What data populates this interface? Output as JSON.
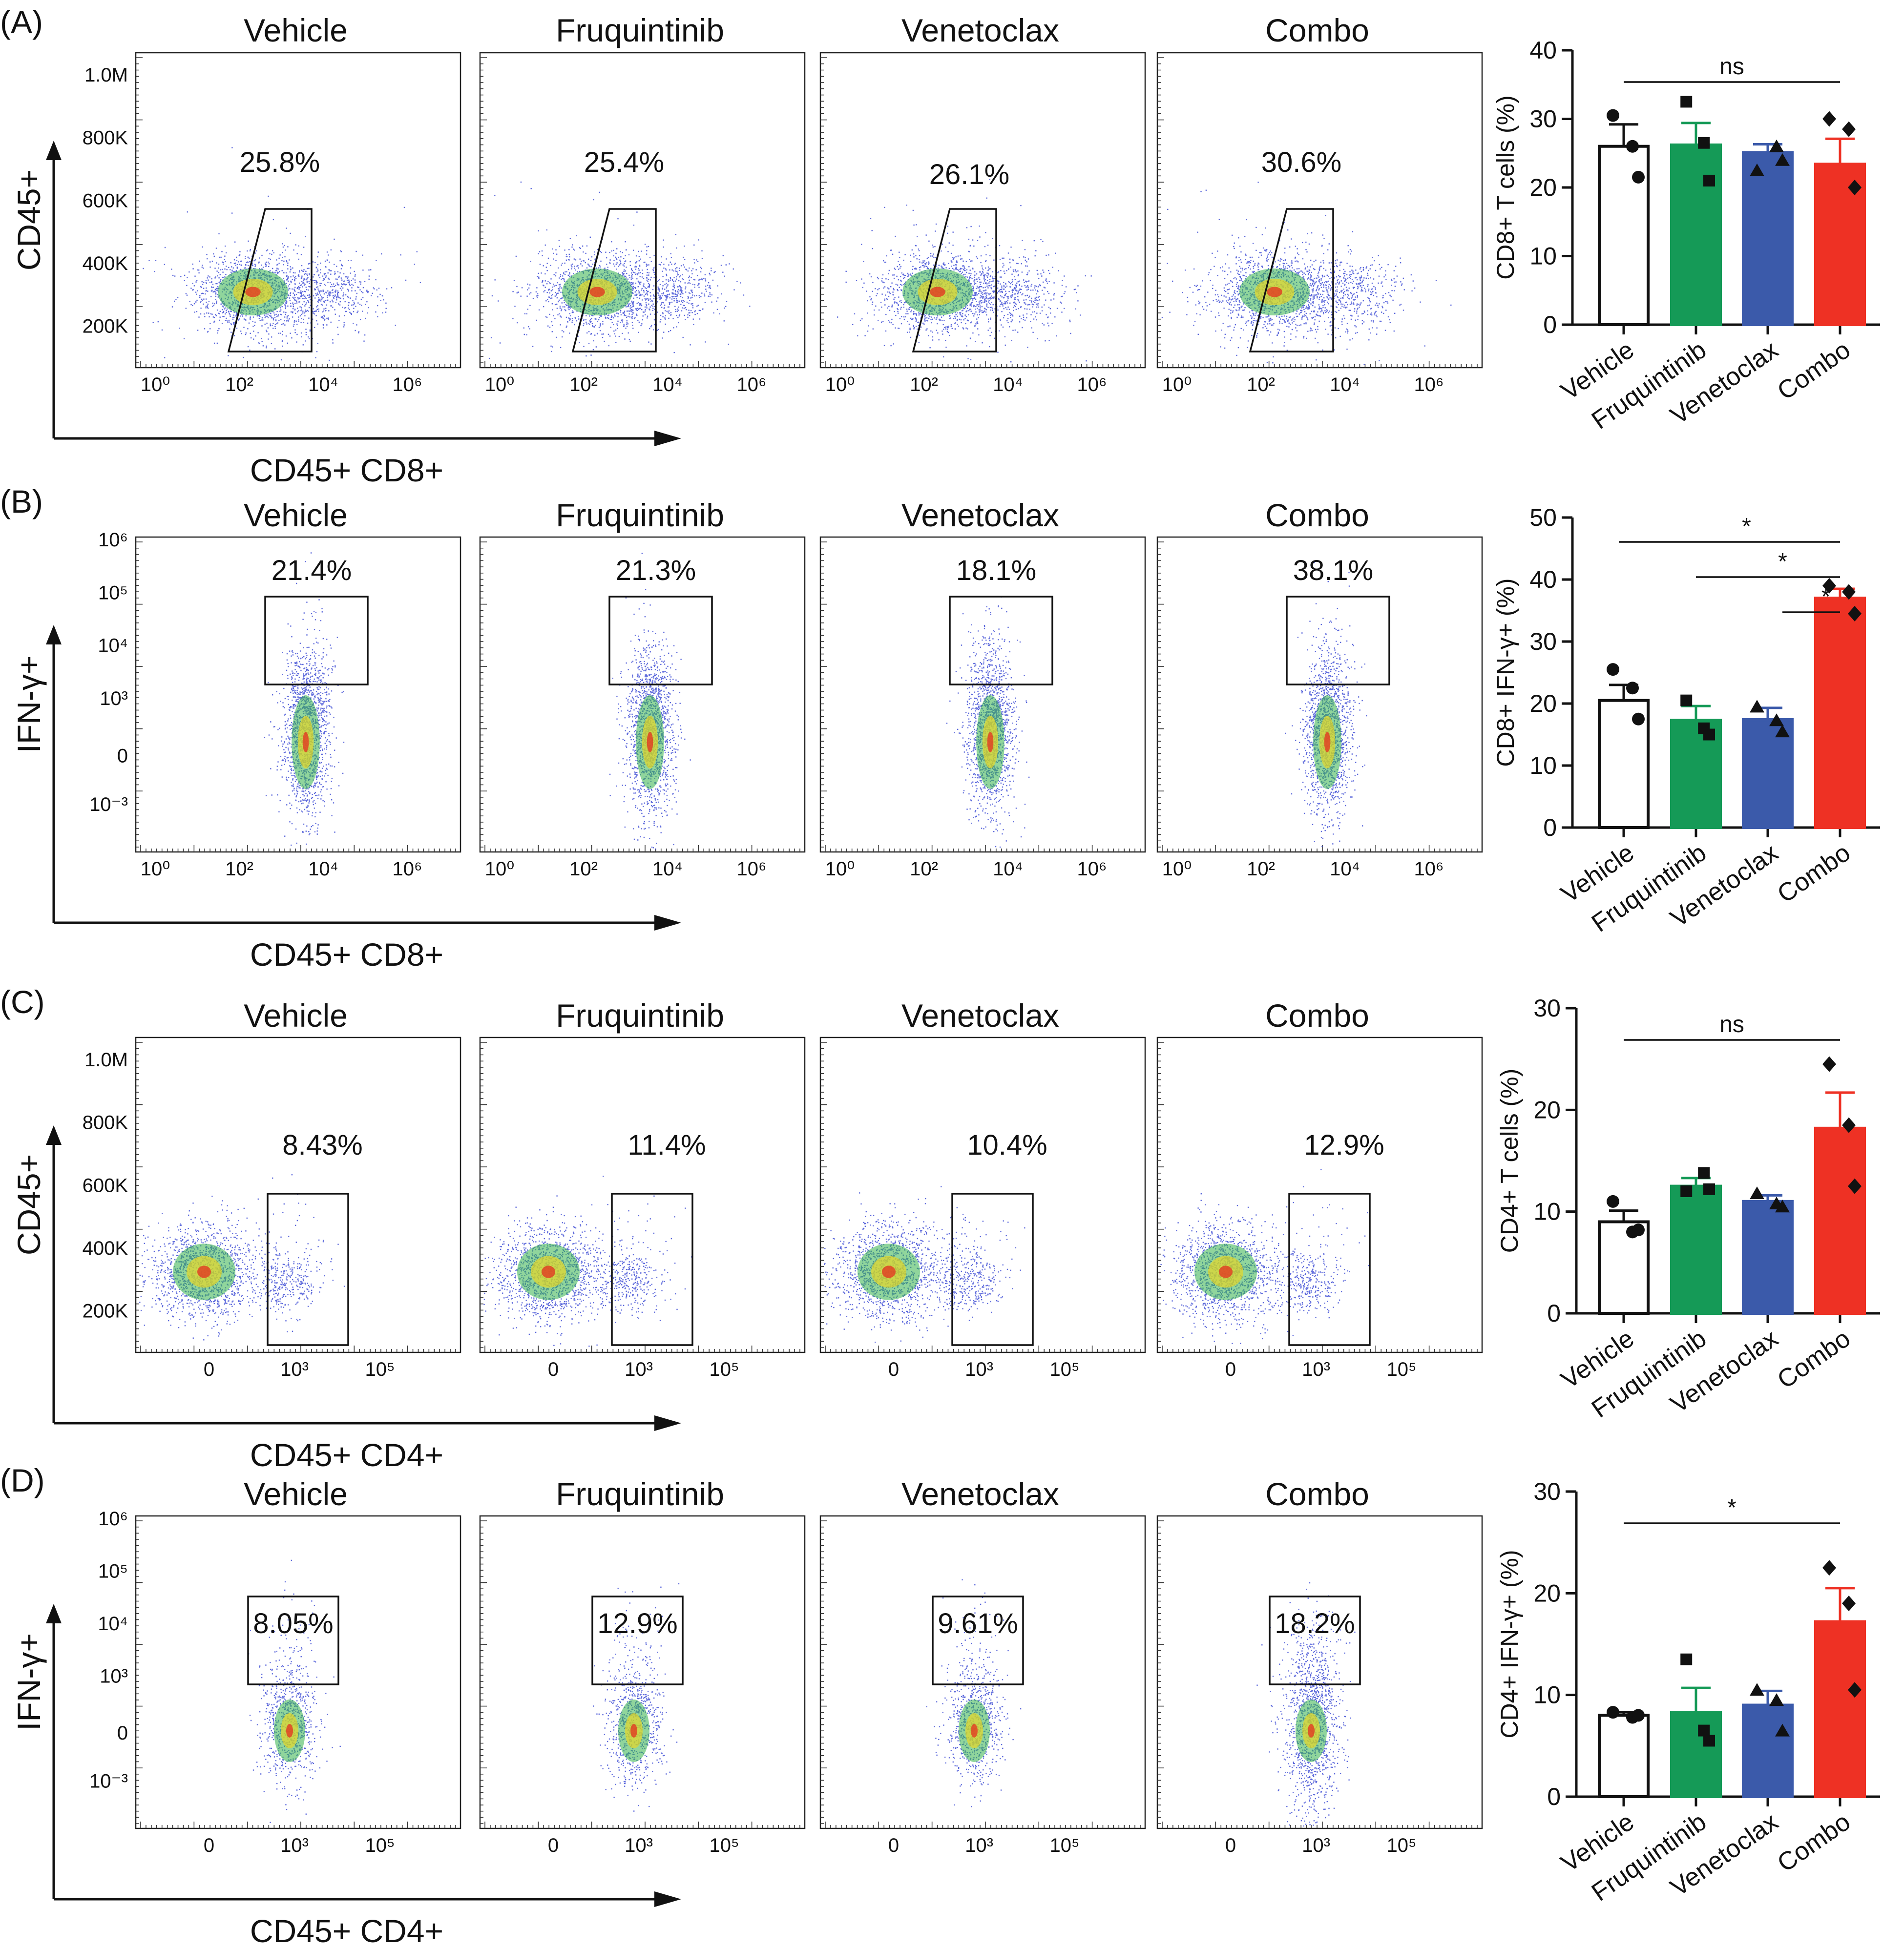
{
  "figure_panels": [
    {
      "label": "(A)",
      "kind": "scatter",
      "groups": [
        "Vehicle",
        "Fruquintinib",
        "Venetoclax",
        "Combo"
      ],
      "percentages": [
        "25.8%",
        "25.4%",
        "26.1%",
        "30.6%"
      ],
      "y_title": "CD45+",
      "x_title": "CD45+ CD8+",
      "y_ticks": [
        "1.0M",
        "800K",
        "600K",
        "400K",
        "200K"
      ],
      "x_ticks": [
        "10⁰",
        "10²",
        "10⁴",
        "10⁶"
      ]
    },
    {
      "label": "(B)",
      "kind": "column",
      "groups": [
        "Vehicle",
        "Fruquintinib",
        "Venetoclax",
        "Combo"
      ],
      "percentages": [
        "21.4%",
        "21.3%",
        "18.1%",
        "38.1%"
      ],
      "y_title": "IFN-γ+",
      "x_title": "CD45+ CD8+",
      "y_ticks": [
        "10⁶",
        "10⁵",
        "10⁴",
        "10³",
        "0",
        "10⁻³"
      ],
      "x_ticks": [
        "10⁰",
        "10²",
        "10⁴",
        "10⁶"
      ]
    },
    {
      "label": "(C)",
      "kind": "cd4",
      "groups": [
        "Vehicle",
        "Fruquintinib",
        "Venetoclax",
        "Combo"
      ],
      "percentages": [
        "8.43%",
        "11.4%",
        "10.4%",
        "12.9%"
      ],
      "y_title": "CD45+",
      "x_title": "CD45+ CD4+",
      "y_ticks": [
        "1.0M",
        "800K",
        "600K",
        "400K",
        "200K"
      ],
      "x_ticks": [
        "0",
        "10³",
        "10⁵"
      ]
    },
    {
      "label": "(D)",
      "kind": "column4",
      "groups": [
        "Vehicle",
        "Fruquintinib",
        "Venetoclax",
        "Combo"
      ],
      "percentages": [
        "8.05%",
        "12.9%",
        "9.61%",
        "18.2%"
      ],
      "y_title": "IFN-γ+",
      "x_title": "CD45+ CD4+",
      "y_ticks": [
        "10⁶",
        "10⁵",
        "10⁴",
        "10³",
        "0",
        "10⁻³"
      ],
      "x_ticks": [
        "0",
        "10³",
        "10⁵"
      ]
    }
  ],
  "chart_data": [
    {
      "type": "bar",
      "title": "",
      "categories": [
        "Vehicle",
        "Fruquintinib",
        "Venetoclax",
        "Combo"
      ],
      "ylabel": "CD8+ T cells (%)",
      "ylim": [
        0,
        40
      ],
      "yticks": [
        0,
        10,
        20,
        30,
        40
      ],
      "values": [
        26.0,
        26.2,
        25.1,
        23.4
      ],
      "sem": [
        3.2,
        3.2,
        1.2,
        3.7
      ],
      "points": [
        [
          30.5,
          26,
          21.5
        ],
        [
          32.5,
          26.5,
          21
        ],
        [
          22.5,
          26,
          24
        ],
        [
          30,
          28.5,
          20
        ]
      ],
      "markers": [
        "circle",
        "square",
        "triangle",
        "diamond"
      ],
      "colors": [
        "#ffffff",
        "#159a57",
        "#3b5aaa",
        "#ee3124"
      ],
      "significance": [
        {
          "from": 0,
          "to": 3,
          "label": "ns"
        }
      ]
    },
    {
      "type": "bar",
      "title": "",
      "categories": [
        "Vehicle",
        "Fruquintinib",
        "Venetoclax",
        "Combo"
      ],
      "ylabel": "CD8+ IFN-γ+ (%)",
      "ylim": [
        0,
        50
      ],
      "yticks": [
        0,
        10,
        20,
        30,
        40,
        50
      ],
      "values": [
        20.5,
        17.3,
        17.4,
        37.0
      ],
      "sem": [
        2.5,
        2.3,
        1.9,
        1.5
      ],
      "points": [
        [
          25.5,
          22.5,
          17.5
        ],
        [
          20.5,
          16,
          15
        ],
        [
          19.5,
          17.3,
          15.5
        ],
        [
          39,
          38,
          34.5
        ]
      ],
      "markers": [
        "circle",
        "square",
        "triangle",
        "diamond"
      ],
      "colors": [
        "#ffffff",
        "#159a57",
        "#3b5aaa",
        "#ee3124"
      ],
      "significance": [
        {
          "from": 0,
          "to": 3,
          "label": "*"
        },
        {
          "from": 1,
          "to": 3,
          "label": "*"
        },
        {
          "from": 2,
          "to": 3,
          "label": "*"
        }
      ]
    },
    {
      "type": "bar",
      "title": "",
      "categories": [
        "Vehicle",
        "Fruquintinib",
        "Venetoclax",
        "Combo"
      ],
      "ylabel": "CD4+ T cells (%)",
      "ylim": [
        0,
        30
      ],
      "yticks": [
        0,
        10,
        20,
        30
      ],
      "values": [
        9.0,
        12.5,
        11.0,
        18.2
      ],
      "sem": [
        1.1,
        0.8,
        0.6,
        3.5
      ],
      "points": [
        [
          11,
          8,
          8.2
        ],
        [
          12,
          13.8,
          12.2
        ],
        [
          11.8,
          10.8,
          10.5
        ],
        [
          24.5,
          18.5,
          12.5
        ]
      ],
      "markers": [
        "circle",
        "square",
        "triangle",
        "diamond"
      ],
      "colors": [
        "#ffffff",
        "#159a57",
        "#3b5aaa",
        "#ee3124"
      ],
      "significance": [
        {
          "from": 0,
          "to": 3,
          "label": "ns"
        }
      ]
    },
    {
      "type": "bar",
      "title": "",
      "categories": [
        "Vehicle",
        "Fruquintinib",
        "Venetoclax",
        "Combo"
      ],
      "ylabel": "CD4+ IFN-γ+ (%)",
      "ylim": [
        0,
        30
      ],
      "yticks": [
        0,
        10,
        20,
        30
      ],
      "values": [
        8.0,
        8.3,
        9.0,
        17.2
      ],
      "sem": [
        0.3,
        2.4,
        1.4,
        3.3
      ],
      "points": [
        [
          8.3,
          7.8,
          8.0
        ],
        [
          13.5,
          6.5,
          5.5
        ],
        [
          10.5,
          9.5,
          6.5
        ],
        [
          22.5,
          19,
          10.5
        ]
      ],
      "markers": [
        "circle",
        "square",
        "triangle",
        "diamond"
      ],
      "colors": [
        "#ffffff",
        "#159a57",
        "#3b5aaa",
        "#ee3124"
      ],
      "significance": [
        {
          "from": 0,
          "to": 3,
          "label": "*"
        }
      ]
    }
  ]
}
